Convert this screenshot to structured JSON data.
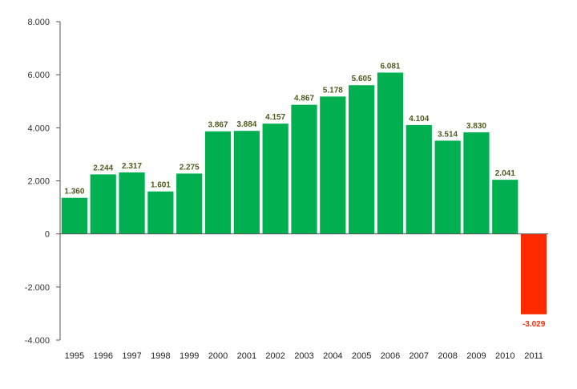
{
  "chart_data": {
    "type": "bar",
    "title": "",
    "xlabel": "",
    "ylabel": "",
    "ylim": [
      -4000,
      8000
    ],
    "y_ticks": [
      8000,
      6000,
      4000,
      2000,
      0,
      -2000,
      -4000
    ],
    "y_tick_labels": [
      "8.000",
      "6.000",
      "4.000",
      "2.000",
      "0",
      "-2.000",
      "-4.000"
    ],
    "grid": false,
    "legend": "none",
    "categories": [
      "1995",
      "1996",
      "1997",
      "1998",
      "1999",
      "2000",
      "2001",
      "2002",
      "2003",
      "2004",
      "2005",
      "2006",
      "2007",
      "2008",
      "2009",
      "2010",
      "2011"
    ],
    "values": [
      1360,
      2244,
      2317,
      1601,
      2275,
      3867,
      3884,
      4157,
      4867,
      5178,
      5605,
      6081,
      4104,
      3514,
      3830,
      2041,
      -3029
    ],
    "value_labels": [
      "1.360",
      "2.244",
      "2.317",
      "1.601",
      "2.275",
      "3.867",
      "3.884",
      "4.157",
      "4.867",
      "5.178",
      "5.605",
      "6.081",
      "4.104",
      "3.514",
      "3.830",
      "2.041",
      "-3.029"
    ],
    "colors": {
      "positive_bar": "#00b050",
      "negative_bar": "#ff2a00",
      "positive_label": "#4f5b1f",
      "negative_label": "#ff2a00",
      "axis": "#555555"
    }
  }
}
